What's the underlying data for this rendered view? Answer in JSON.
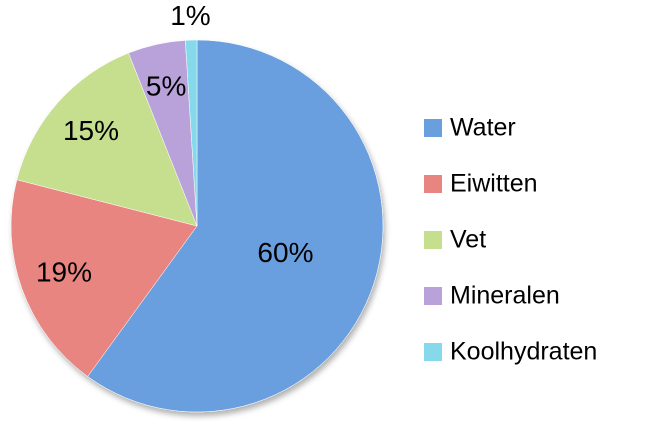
{
  "chart_data": {
    "type": "pie",
    "categories": [
      "Water",
      "Eiwitten",
      "Vet",
      "Mineralen",
      "Koolhydraten"
    ],
    "values": [
      60,
      19,
      15,
      5,
      1
    ],
    "value_labels": [
      "60%",
      "19%",
      "15%",
      "5%",
      "1%"
    ],
    "colors": [
      "#6a9fdf",
      "#e98580",
      "#c6df8e",
      "#b9a2d9",
      "#86d9ea"
    ],
    "legend": "right"
  }
}
